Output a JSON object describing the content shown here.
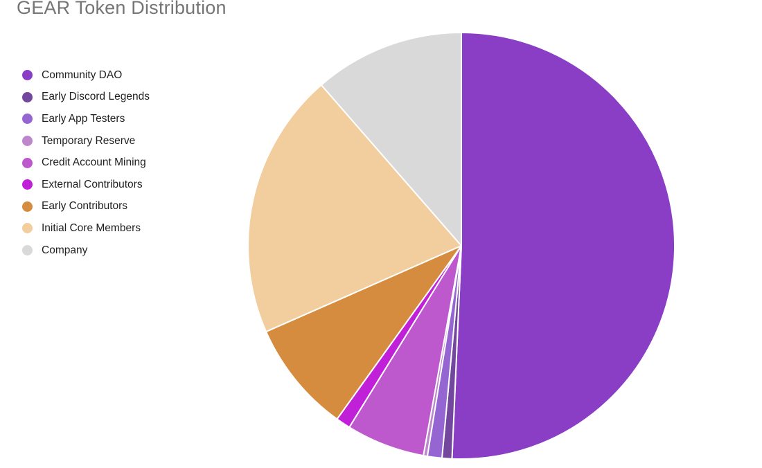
{
  "title": "GEAR Token Distribution",
  "styles": {
    "background": "#ffffff",
    "title_color": "#757575",
    "legend_text_color": "#212121",
    "slice_border_color": "#ffffff"
  },
  "chart_data": {
    "type": "pie",
    "title": "GEAR Token Distribution",
    "unit": "percent",
    "start_angle": "top (12 o'clock)",
    "direction": "clockwise",
    "legend_position": "left",
    "data_labels_shown": false,
    "slices": [
      {
        "label": "Community DAO",
        "value": 50.7,
        "color": "#8a3ec6"
      },
      {
        "label": "Early Discord Legends",
        "value": 0.75,
        "color": "#73479d"
      },
      {
        "label": "Early App Testers",
        "value": 1.1,
        "color": "#9565d2"
      },
      {
        "label": "Temporary Reserve",
        "value": 0.3,
        "color": "#be87cc"
      },
      {
        "label": "Credit Account Mining",
        "value": 5.95,
        "color": "#bd59cd"
      },
      {
        "label": "External Contributors",
        "value": 1.1,
        "color": "#c120d9"
      },
      {
        "label": "Early Contributors",
        "value": 8.5,
        "color": "#d68c3f"
      },
      {
        "label": "Initial Core Members",
        "value": 20.2,
        "color": "#f2cd9e"
      },
      {
        "label": "Company",
        "value": 11.4,
        "color": "#d9d9d9"
      }
    ]
  }
}
